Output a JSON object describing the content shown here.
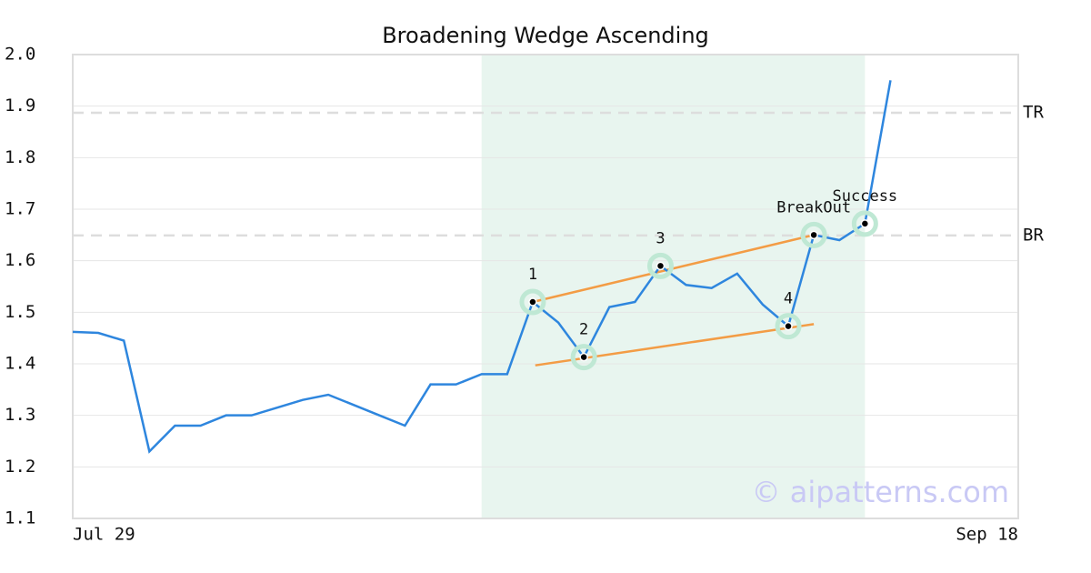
{
  "chart_data": {
    "type": "line",
    "title": "Broadening Wedge Ascending",
    "x": [
      0,
      1,
      2,
      3,
      4,
      5,
      6,
      7,
      8,
      9,
      10,
      11,
      12,
      13,
      14,
      15,
      16,
      17,
      18,
      19,
      20,
      21,
      22,
      23,
      24,
      25,
      26,
      27,
      28,
      29,
      30,
      31,
      32
    ],
    "color": "#2e86de",
    "values": [
      1.462,
      1.46,
      1.445,
      1.23,
      1.28,
      1.28,
      1.3,
      1.3,
      1.315,
      1.33,
      1.34,
      1.32,
      1.3,
      1.28,
      1.36,
      1.36,
      1.38,
      1.38,
      1.52,
      1.48,
      1.413,
      1.51,
      1.52,
      1.59,
      1.553,
      1.547,
      1.575,
      1.515,
      1.473,
      1.65,
      1.64,
      1.672,
      1.95
    ],
    "xlim": [
      0,
      37
    ],
    "xticks": [
      {
        "value": 0,
        "label": "Jul 29"
      },
      {
        "value": 37,
        "label": "Sep 18"
      }
    ],
    "ylim": [
      1.1,
      2.0
    ],
    "yticks": [
      {
        "value": 1.1,
        "label": "1.1"
      },
      1.2,
      1.3,
      1.4,
      1.5,
      1.6,
      1.7,
      1.8,
      1.9,
      {
        "value": 2,
        "label": "2.0"
      }
    ],
    "grid": true,
    "hlines": [
      {
        "label": "TR",
        "value": 1.887
      },
      {
        "label": "BR",
        "value": 1.649
      }
    ],
    "shaded": {
      "x": [
        16,
        31
      ],
      "color": "#e8f5ef"
    },
    "trendlines": [
      {
        "x": [
          18,
          29
        ],
        "values": [
          1.52,
          1.65
        ],
        "color": "#f39c45"
      },
      {
        "x": [
          18.1,
          29
        ],
        "values": [
          1.397,
          1.477
        ],
        "color": "#f39c45"
      }
    ],
    "points": [
      {
        "label": "1",
        "x": 18,
        "value": 1.52
      },
      {
        "label": "2",
        "x": 20,
        "value": 1.413
      },
      {
        "label": "3",
        "x": 23,
        "value": 1.59
      },
      {
        "label": "4",
        "x": 28,
        "value": 1.473
      },
      {
        "label": "BreakOut",
        "x": 29,
        "value": 1.65
      },
      {
        "label": "Success",
        "x": 31,
        "value": 1.672
      }
    ],
    "watermark": "© aipatterns.com"
  }
}
